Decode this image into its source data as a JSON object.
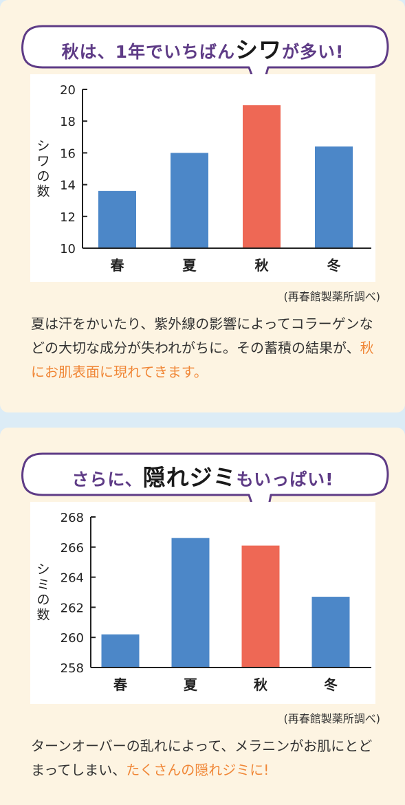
{
  "charts": [
    {
      "bubble": {
        "prefix": "秋は、1年でいちばん",
        "emphasis": "シワ",
        "suffix": "が多い!"
      },
      "source": "(再春館製薬所調べ)",
      "description": {
        "text": "夏は汗をかいたり、紫外線の影響によってコラーゲンなどの大切な成分が失われがちに。その蓄積の結果が、",
        "highlight": "秋にお肌表面に現れてきます。"
      }
    },
    {
      "bubble": {
        "prefix": "さらに、",
        "emphasis": "隠れジミ",
        "suffix": "もいっぱい!"
      },
      "source": "(再春館製薬所調べ)",
      "description": {
        "text": "ターンオーバーの乱れによって、メラニンがお肌にとどまってしまい、",
        "highlight": "たくさんの隠れジミに!"
      }
    }
  ],
  "colors": {
    "bar": "#4c87c8",
    "highlight_bar": "#ee6855",
    "bubble_border": "#5e3b86",
    "highlight_text": "#f08636"
  },
  "chart_data": [
    {
      "type": "bar",
      "categories": [
        "春",
        "夏",
        "秋",
        "冬"
      ],
      "values": [
        13.6,
        16.0,
        19.0,
        16.4
      ],
      "highlight_index": 2,
      "ylabel": "シワの数",
      "ylim": [
        10,
        20
      ],
      "yticks": [
        "10",
        "12",
        "14",
        "16",
        "18",
        "20"
      ],
      "grid": false
    },
    {
      "type": "bar",
      "categories": [
        "春",
        "夏",
        "秋",
        "冬"
      ],
      "values": [
        260.2,
        266.6,
        266.1,
        262.7
      ],
      "highlight_index": 2,
      "ylabel": "シミの数",
      "ylim": [
        258,
        268
      ],
      "yticks": [
        "258",
        "260",
        "262",
        "264",
        "266",
        "268"
      ],
      "grid": false
    }
  ]
}
